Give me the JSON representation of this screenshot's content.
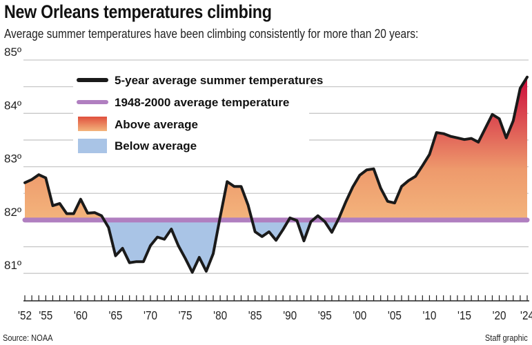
{
  "title": "New Orleans temperatures climbing",
  "subtitle": "Average summer temperatures have been climbing consistently for more than 20 years:",
  "source": "Source: NOAA",
  "credit": "Staff graphic",
  "chart_data": {
    "type": "area",
    "title": "New Orleans temperatures climbing",
    "ylim": [
      80.6,
      85
    ],
    "yticks": [
      81,
      82,
      83,
      84,
      85
    ],
    "ytick_labels": [
      "81º",
      "82º",
      "83º",
      "84º",
      "85º"
    ],
    "xlim": [
      1952,
      2024
    ],
    "xtick_years": [
      1952,
      1955,
      1960,
      1965,
      1970,
      1975,
      1980,
      1985,
      1990,
      1995,
      2000,
      2005,
      2010,
      2015,
      2020,
      2024
    ],
    "xtick_labels": [
      "'52",
      "'55",
      "'60",
      "'65",
      "'70",
      "'75",
      "'80",
      "'85",
      "'90",
      "'95",
      "'00",
      "'05",
      "'10",
      "'15",
      "'20",
      "'24"
    ],
    "grid": true,
    "legend_placement": "top-left",
    "legend": [
      {
        "label": "5-year average summer temperatures",
        "color": "#1a1a1a"
      },
      {
        "label": "1948-2000 average temperature",
        "color": "#b07fc0"
      },
      {
        "label": "Above average",
        "color": "#e8664a"
      },
      {
        "label": "Below average",
        "color": "#a9c4e6"
      }
    ],
    "baseline": 82,
    "colors": {
      "above_low": "#f3b47c",
      "above_high": "#cc0a3a",
      "below": "#a9c4e6",
      "baseline": "#b07fc0",
      "line": "#1a1a1a"
    },
    "x": [
      1952,
      1953,
      1954,
      1955,
      1956,
      1957,
      1958,
      1959,
      1960,
      1961,
      1962,
      1963,
      1964,
      1965,
      1966,
      1967,
      1968,
      1969,
      1970,
      1971,
      1972,
      1973,
      1974,
      1975,
      1976,
      1977,
      1978,
      1979,
      1980,
      1981,
      1982,
      1983,
      1984,
      1985,
      1986,
      1987,
      1988,
      1989,
      1990,
      1991,
      1992,
      1993,
      1994,
      1995,
      1996,
      1997,
      1998,
      1999,
      2000,
      2001,
      2002,
      2003,
      2004,
      2005,
      2006,
      2007,
      2008,
      2009,
      2010,
      2011,
      2012,
      2013,
      2014,
      2015,
      2016,
      2017,
      2018,
      2019,
      2020,
      2021,
      2022,
      2023,
      2024
    ],
    "series": [
      {
        "name": "5-year average summer temperatures",
        "values": [
          82.7,
          82.76,
          82.85,
          82.79,
          82.27,
          82.31,
          82.12,
          82.12,
          82.39,
          82.13,
          82.14,
          82.08,
          81.86,
          81.33,
          81.47,
          81.2,
          81.22,
          81.22,
          81.52,
          81.68,
          81.64,
          81.83,
          81.52,
          81.28,
          81.02,
          81.3,
          81.04,
          81.37,
          82.06,
          82.72,
          82.63,
          82.63,
          82.28,
          81.78,
          81.69,
          81.78,
          81.62,
          81.82,
          82.04,
          81.99,
          81.61,
          81.97,
          82.08,
          81.97,
          81.77,
          82.03,
          82.34,
          82.62,
          82.84,
          82.94,
          82.96,
          82.6,
          82.35,
          82.32,
          82.63,
          82.74,
          82.82,
          83.02,
          83.23,
          83.64,
          83.62,
          83.57,
          83.54,
          83.51,
          83.53,
          83.46,
          83.72,
          83.98,
          83.9,
          83.54,
          83.86,
          84.47,
          84.68
        ]
      }
    ]
  }
}
